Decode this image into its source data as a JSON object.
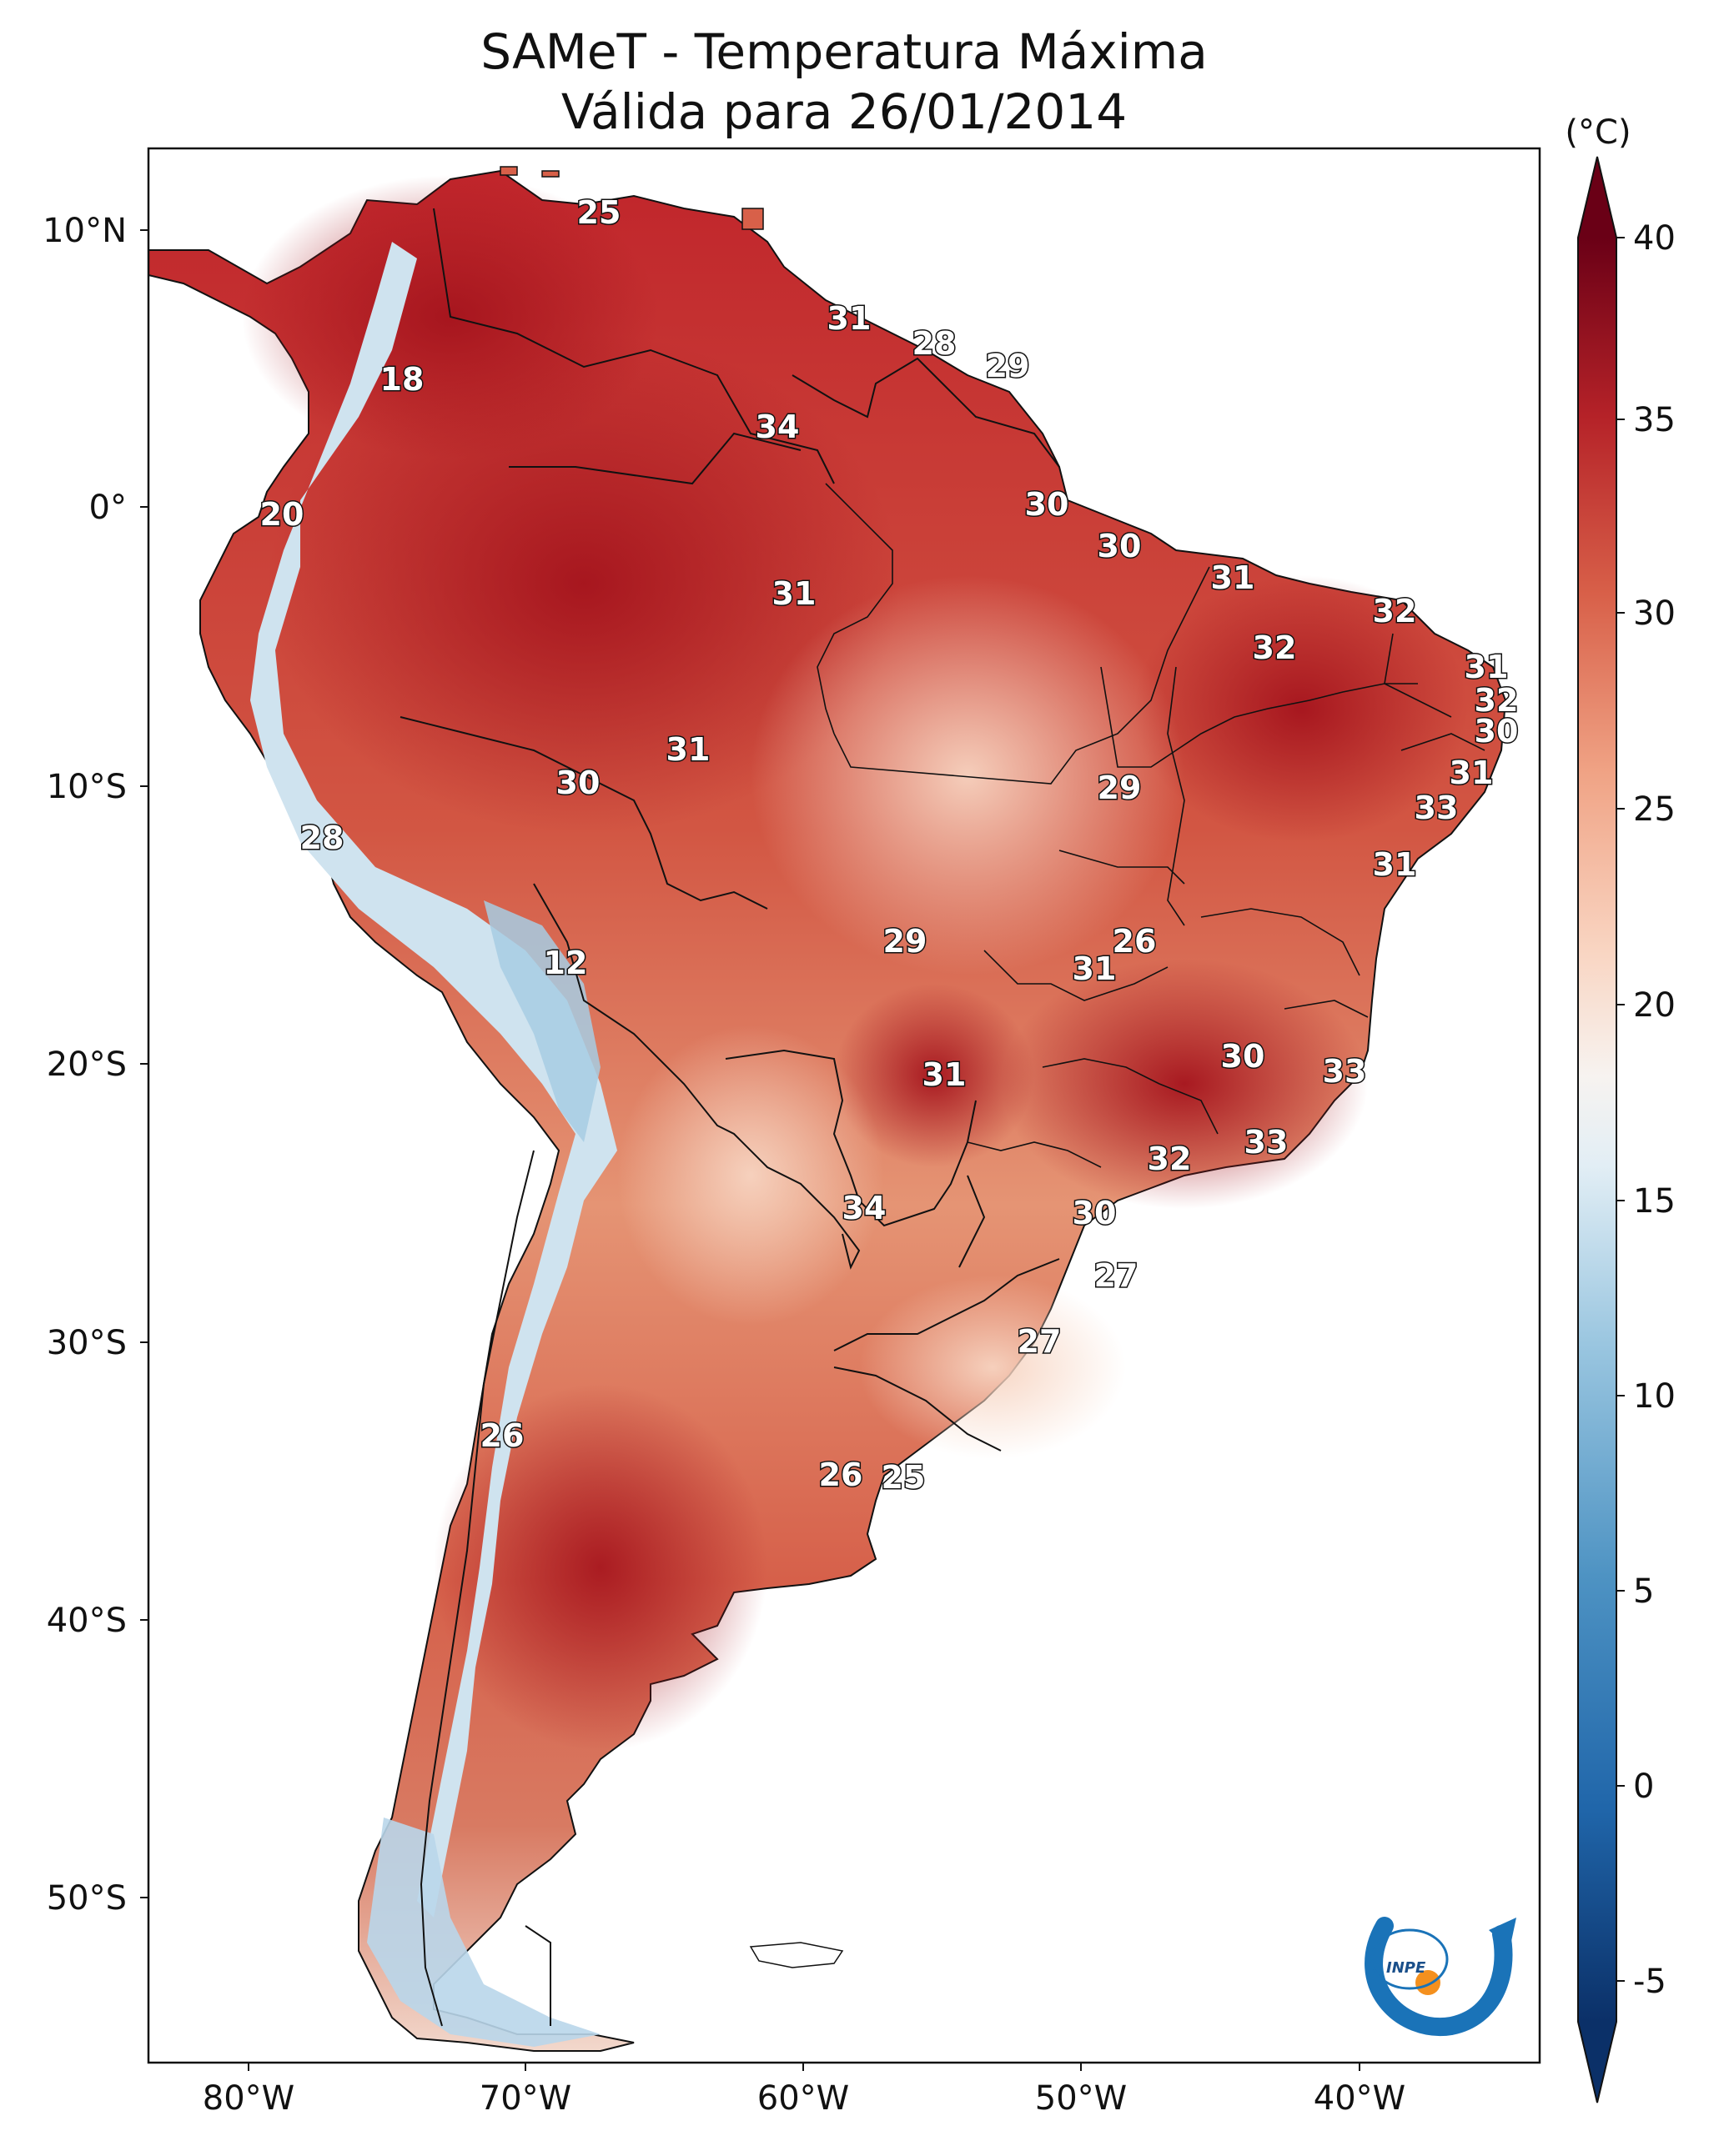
{
  "title_line1": "SAMeT - Temperatura Máxima",
  "title_line2": "Válida para 26/01/2014",
  "colorbar": {
    "unit": "(°C)",
    "ticks": [
      "40",
      "35",
      "30",
      "25",
      "20",
      "15",
      "10",
      "5",
      "0",
      "-5"
    ]
  },
  "axes": {
    "lat_labels": [
      "10°N",
      "0°",
      "10°S",
      "20°S",
      "30°S",
      "40°S",
      "50°S"
    ],
    "lon_labels": [
      "80°W",
      "70°W",
      "60°W",
      "50°W",
      "40°W"
    ]
  },
  "temperature_labels": [
    {
      "id": "t1",
      "text": "25"
    },
    {
      "id": "t2",
      "text": "31"
    },
    {
      "id": "t3",
      "text": "28"
    },
    {
      "id": "t4",
      "text": "29"
    },
    {
      "id": "t5",
      "text": "18"
    },
    {
      "id": "t6",
      "text": "34"
    },
    {
      "id": "t7",
      "text": "20"
    },
    {
      "id": "t8",
      "text": "30"
    },
    {
      "id": "t9",
      "text": "30"
    },
    {
      "id": "t10",
      "text": "31"
    },
    {
      "id": "t11",
      "text": "31"
    },
    {
      "id": "t12",
      "text": "32"
    },
    {
      "id": "t13",
      "text": "32"
    },
    {
      "id": "t14",
      "text": "31"
    },
    {
      "id": "t15",
      "text": "32"
    },
    {
      "id": "t16",
      "text": "30"
    },
    {
      "id": "t17",
      "text": "31"
    },
    {
      "id": "t18",
      "text": "30"
    },
    {
      "id": "t19",
      "text": "29"
    },
    {
      "id": "t20",
      "text": "31"
    },
    {
      "id": "t21",
      "text": "33"
    },
    {
      "id": "t22",
      "text": "28"
    },
    {
      "id": "t23",
      "text": "31"
    },
    {
      "id": "t24",
      "text": "12"
    },
    {
      "id": "t25",
      "text": "29"
    },
    {
      "id": "t26",
      "text": "26"
    },
    {
      "id": "t27",
      "text": "31"
    },
    {
      "id": "t28",
      "text": "30"
    },
    {
      "id": "t29",
      "text": "33"
    },
    {
      "id": "t30",
      "text": "31"
    },
    {
      "id": "t31",
      "text": "33"
    },
    {
      "id": "t32",
      "text": "32"
    },
    {
      "id": "t33",
      "text": "34"
    },
    {
      "id": "t34",
      "text": "30"
    },
    {
      "id": "t35",
      "text": "27"
    },
    {
      "id": "t36",
      "text": "27"
    },
    {
      "id": "t37",
      "text": "26"
    },
    {
      "id": "t38",
      "text": "26"
    },
    {
      "id": "t39",
      "text": "25"
    }
  ],
  "logo": {
    "text": "INPE"
  },
  "colors": {
    "hot": "#a5141d",
    "warm": "#e58367",
    "neutral": "#f7f0ec",
    "cool": "#9ac6e0",
    "cold": "#1e66a8"
  }
}
